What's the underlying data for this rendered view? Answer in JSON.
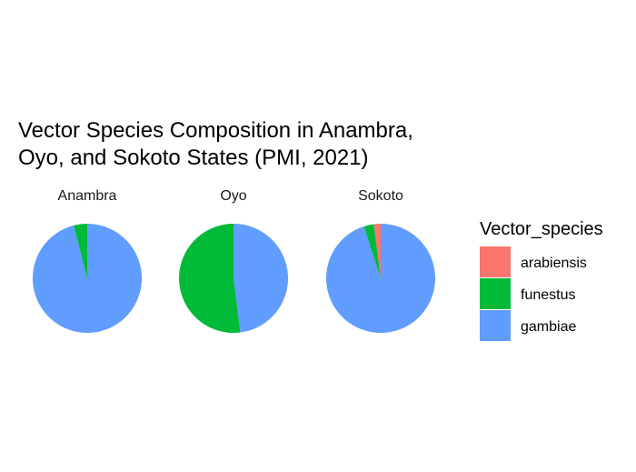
{
  "chart_data": {
    "type": "pie",
    "title_lines": [
      "Vector Species Composition in Anambra,",
      "Oyo, and Sokoto States (PMI, 2021)"
    ],
    "legend": {
      "title": "Vector_species",
      "entries": [
        {
          "name": "arabiensis",
          "color": "#F8766D"
        },
        {
          "name": "funestus",
          "color": "#00BA38"
        },
        {
          "name": "gambiae",
          "color": "#619CFF"
        }
      ],
      "placement": "right"
    },
    "facets": [
      {
        "name": "Anambra",
        "shares": {
          "arabiensis": 0.0,
          "funestus": 0.04,
          "gambiae": 0.96
        }
      },
      {
        "name": "Oyo",
        "shares": {
          "arabiensis": 0.0,
          "funestus": 0.52,
          "gambiae": 0.48
        }
      },
      {
        "name": "Sokoto",
        "shares": {
          "arabiensis": 0.02,
          "funestus": 0.03,
          "gambiae": 0.95
        }
      }
    ]
  }
}
